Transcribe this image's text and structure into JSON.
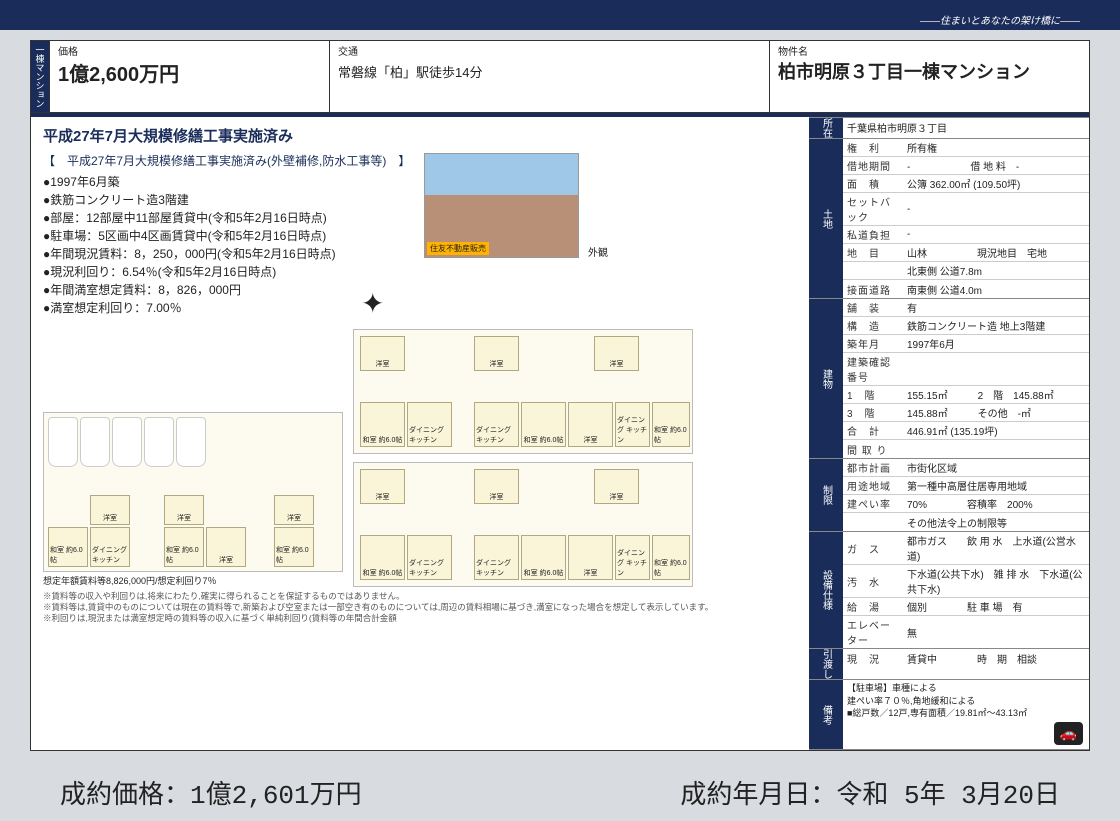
{
  "tagline": "――住まいとあなたの架け橋に――",
  "header": {
    "type_tag": "一棟マンション",
    "price_label": "価格",
    "price_value": "1億2,600万円",
    "transport_label": "交通",
    "transport_value": "常磐線「柏」駅徒歩14分",
    "name_label": "物件名",
    "name_value": "柏市明原３丁目一棟マンション"
  },
  "main": {
    "title": "平成27年7月大規模修繕工事実施済み",
    "bracket": "【　平成27年7月大規模修繕工事実施済み(外壁補修,防水工事等)　】",
    "bullets": [
      "1997年6月築",
      "鉄筋コンクリート造3階建",
      "部屋：12部屋中11部屋賃貸中(令和5年2月16日時点)",
      "駐車場：5区画中4区画賃貸中(令和5年2月16日時点)",
      "年間現況賃料：8，250，000円(令和5年2月16日時点)",
      "現況利回り：6.54％(令和5年2月16日時点)",
      "年間満室想定賃料：8，826，000円",
      "満室想定利回り：7.00％"
    ],
    "photo_caption": "外観",
    "photo_badge": "住友不動産販売",
    "plan_note": "想定年額賃料等8,826,000円/想定利回り7％",
    "notes": [
      "※賃料等の収入や利回りは,将来にわたり,確実に得られることを保証するものではありません。",
      "※賃料等は,賃貸中のものについては現在の賃料等で,新築および空室または一部空き有のものについては,周辺の賃料相場に基づき,満室になった場合を想定して表示しています。",
      "※利回りは,現況または満室想定時の賃料等の収入に基づく単純利回り(賃料等の年間合計金額"
    ],
    "room_labels": {
      "washitsu": "和室\n約6.0帖",
      "dk": "ダイニング\nキッチン",
      "youshitsu": "洋室"
    }
  },
  "spec": {
    "location": {
      "cat": "所在",
      "address": "千葉県柏市明原３丁目"
    },
    "land": {
      "cat": "土地",
      "rows": [
        [
          "権　利",
          "所有権"
        ],
        [
          "借地期間",
          "-　　　　　　借 地 料　-"
        ],
        [
          "面　積",
          "公簿 362.00㎡ (109.50坪)"
        ],
        [
          "セットバック",
          "-"
        ],
        [
          "私道負担",
          "-"
        ],
        [
          "地　目",
          "山林　　　　　現況地目　宅地"
        ],
        [
          "",
          "北東側 公道7.8m"
        ],
        [
          "接面道路",
          "南東側 公道4.0m"
        ]
      ]
    },
    "building": {
      "cat": "建物",
      "rows": [
        [
          "舗　装",
          "有"
        ],
        [
          "構　造",
          "鉄筋コンクリート造 地上3階建"
        ],
        [
          "築年月",
          "1997年6月"
        ],
        [
          "建築確認番号",
          ""
        ],
        [
          "1　階",
          "155.15㎡　　　2　階　145.88㎡"
        ],
        [
          "3　階",
          "145.88㎡　　　その他　-㎡"
        ],
        [
          "合　計",
          "446.91㎡ (135.19坪)"
        ],
        [
          "間 取 り",
          ""
        ]
      ]
    },
    "limits": {
      "cat": "制限",
      "rows": [
        [
          "都市計画",
          "市街化区域"
        ],
        [
          "用途地域",
          "第一種中高層住居専用地域"
        ],
        [
          "建ぺい率",
          "70%　　　　容積率　200%"
        ],
        [
          "",
          "その他法令上の制限等"
        ]
      ]
    },
    "equip": {
      "cat": "設備仕様",
      "rows": [
        [
          "ガ　ス",
          "都市ガス　　飲 用 水　上水道(公営水道)"
        ],
        [
          "汚　水",
          "下水道(公共下水)　雑 排 水　下水道(公共下水)"
        ],
        [
          "給　湯",
          "個別　　　　駐 車 場　有"
        ],
        [
          "エレベーター",
          "無"
        ]
      ]
    },
    "delivery": {
      "cat": "引渡し",
      "row": [
        "現　況",
        "賃貸中　　　　時　期　相談"
      ]
    },
    "remarks": {
      "cat": "備考",
      "lines": [
        "【駐車場】車種による",
        "建ぺい率７０％,角地緩和による",
        "■総戸数／12戸,専有面積／19.81㎡～43.13㎡"
      ]
    }
  },
  "footer": {
    "price_label": "成約価格：",
    "price_value": "1億2,601万円",
    "date_label": "成約年月日：",
    "date_value": "令和 5年 3月20日"
  }
}
